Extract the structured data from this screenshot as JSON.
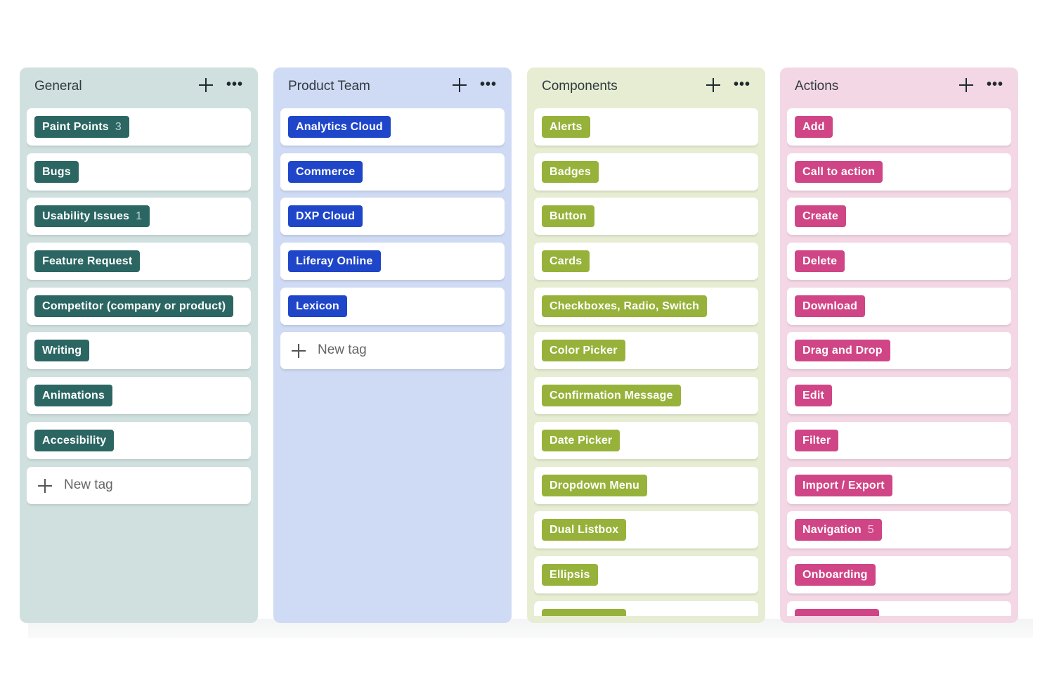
{
  "columns": [
    {
      "title": "General",
      "bg": "#cfe0df",
      "tag_color": "#2b6663",
      "tags": [
        {
          "label": "Paint Points",
          "count": "3"
        },
        {
          "label": "Bugs"
        },
        {
          "label": "Usability Issues",
          "count": "1"
        },
        {
          "label": "Feature Request"
        },
        {
          "label": "Competitor (company or product)"
        },
        {
          "label": "Writing"
        },
        {
          "label": "Animations"
        },
        {
          "label": "Accesibility"
        }
      ],
      "new_tag": "New tag"
    },
    {
      "title": "Product Team",
      "bg": "#cfdaf4",
      "tag_color": "#1f46c9",
      "tags": [
        {
          "label": "Analytics Cloud"
        },
        {
          "label": "Commerce"
        },
        {
          "label": "DXP Cloud"
        },
        {
          "label": "Liferay Online"
        },
        {
          "label": "Lexicon"
        }
      ],
      "new_tag": "New tag"
    },
    {
      "title": "Components",
      "bg": "#e7edd3",
      "tag_color": "#97b23a",
      "tags": [
        {
          "label": "Alerts"
        },
        {
          "label": "Badges"
        },
        {
          "label": "Button"
        },
        {
          "label": "Cards"
        },
        {
          "label": "Checkboxes, Radio, Switch"
        },
        {
          "label": "Color Picker"
        },
        {
          "label": "Confirmation Message"
        },
        {
          "label": "Date Picker"
        },
        {
          "label": "Dropdown Menu"
        },
        {
          "label": "Dual Listbox"
        },
        {
          "label": "Ellipsis"
        },
        {
          "label": ""
        }
      ]
    },
    {
      "title": "Actions",
      "bg": "#f4d7e5",
      "tag_color": "#d04585",
      "tags": [
        {
          "label": "Add"
        },
        {
          "label": "Call to action"
        },
        {
          "label": "Create"
        },
        {
          "label": "Delete"
        },
        {
          "label": "Download"
        },
        {
          "label": "Drag and Drop"
        },
        {
          "label": "Edit"
        },
        {
          "label": "Filter"
        },
        {
          "label": "Import / Export"
        },
        {
          "label": "Navigation",
          "count": "5"
        },
        {
          "label": "Onboarding"
        },
        {
          "label": ""
        }
      ]
    }
  ],
  "icons": {
    "add": "plus-icon",
    "more": "ellipsis-icon"
  }
}
